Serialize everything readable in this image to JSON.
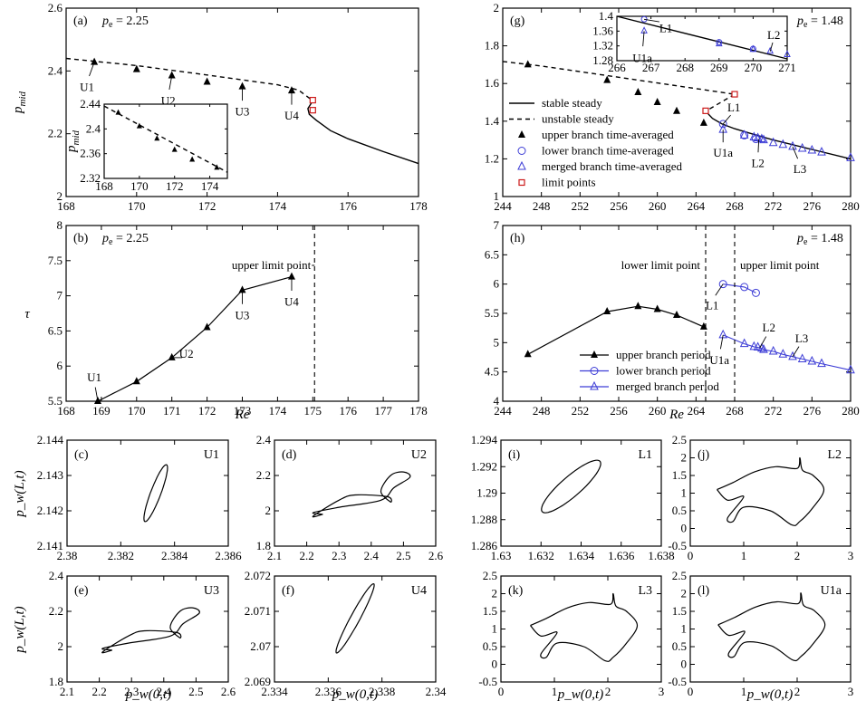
{
  "chart_data": [
    {
      "type": "line",
      "tag": "(a)",
      "pe": "2.25",
      "ylabel": "p_mid",
      "xlabel": "",
      "xlim": [
        168,
        178
      ],
      "ylim": [
        2.0,
        2.6
      ],
      "xticks": [
        "168",
        "170",
        "172",
        "174",
        "176",
        "178"
      ],
      "yticks": [
        "2",
        "2.2",
        "2.4",
        "2.6"
      ],
      "series": [
        {
          "style": "unstable-steady",
          "x": [
            168,
            170,
            172,
            174,
            174.6,
            175.0
          ],
          "y": [
            2.44,
            2.417,
            2.387,
            2.356,
            2.339,
            2.305
          ]
        },
        {
          "style": "stable-steady",
          "x": [
            175.0,
            174.86,
            174.9,
            175.1,
            175.5,
            176,
            177,
            178
          ],
          "y": [
            2.305,
            2.28,
            2.262,
            2.243,
            2.21,
            2.184,
            2.143,
            2.105
          ]
        },
        {
          "style": "upper-branch",
          "x": [
            168.8,
            170.0,
            171.0,
            172.0,
            173.0,
            174.4
          ],
          "y": [
            2.428,
            2.405,
            2.385,
            2.365,
            2.35,
            2.337
          ]
        },
        {
          "style": "limit-points",
          "x": [
            175.0,
            175.0
          ],
          "y": [
            2.307,
            2.275
          ]
        }
      ],
      "annotations": [
        {
          "text": "U1",
          "x": 168.8,
          "y": 2.428
        },
        {
          "text": "U2",
          "x": 171.0,
          "y": 2.385
        },
        {
          "text": "U3",
          "x": 173.0,
          "y": 2.35
        },
        {
          "text": "U4",
          "x": 174.4,
          "y": 2.337
        }
      ],
      "inset": {
        "xlim": [
          168,
          175
        ],
        "ylim": [
          2.32,
          2.44
        ],
        "xticks": [
          "168",
          "170",
          "172",
          "174"
        ],
        "yticks": [
          "2.32",
          "2.36",
          "2.4",
          "2.44"
        ],
        "ylabel": "p_mid",
        "series": [
          {
            "style": "unstable-steady",
            "x": [
              168,
              175
            ],
            "y": [
              2.437,
              2.33
            ]
          },
          {
            "style": "upper-branch",
            "x": [
              168.8,
              170,
              171,
              172,
              173,
              174.4
            ],
            "y": [
              2.426,
              2.404,
              2.384,
              2.366,
              2.35,
              2.337
            ]
          }
        ]
      }
    },
    {
      "type": "line",
      "tag": "(g)",
      "pe": "1.48",
      "xlabel": "",
      "ylabel": "",
      "xlim": [
        244,
        280
      ],
      "ylim": [
        1.0,
        2.0
      ],
      "xticks": [
        "244",
        "248",
        "252",
        "256",
        "260",
        "264",
        "268",
        "272",
        "276",
        "280"
      ],
      "yticks": [
        "1",
        "1.2",
        "1.4",
        "1.6",
        "1.8",
        "2"
      ],
      "series": [
        {
          "style": "unstable-steady",
          "x": [
            244,
            248,
            252,
            256,
            260,
            264,
            268
          ],
          "y": [
            1.717,
            1.693,
            1.663,
            1.633,
            1.603,
            1.573,
            1.543
          ]
        },
        {
          "style": "unstable-steady",
          "x": [
            268,
            265.0
          ],
          "y": [
            1.543,
            1.453
          ]
        },
        {
          "style": "stable-steady",
          "x": [
            265.0,
            265.7,
            266.7,
            268,
            270,
            272,
            276,
            280
          ],
          "y": [
            1.453,
            1.415,
            1.385,
            1.36,
            1.33,
            1.3,
            1.25,
            1.2
          ]
        },
        {
          "style": "upper-branch",
          "x": [
            246.6,
            254.8,
            258.0,
            260.0,
            262.0,
            264.8
          ],
          "y": [
            1.7,
            1.617,
            1.553,
            1.5,
            1.453,
            1.39
          ]
        },
        {
          "style": "lower-branch",
          "x": [
            266.8,
            269.0,
            270.2
          ],
          "y": [
            1.385,
            1.325,
            1.305
          ]
        },
        {
          "style": "merged-branch",
          "x": [
            266.8,
            269.0,
            270.0,
            270.4,
            270.8,
            271.0,
            272.0,
            273.0,
            274.0,
            275.0,
            276.0,
            277.0,
            280.0
          ],
          "y": [
            1.355,
            1.325,
            1.315,
            1.31,
            1.305,
            1.3,
            1.285,
            1.275,
            1.265,
            1.255,
            1.245,
            1.235,
            1.205
          ]
        },
        {
          "style": "limit-points",
          "x": [
            268.0,
            265.0
          ],
          "y": [
            1.543,
            1.455
          ]
        }
      ],
      "annotations": [
        {
          "text": "L1",
          "x": 266.8,
          "y": 1.385
        },
        {
          "text": "U1a",
          "x": 266.8,
          "y": 1.355
        },
        {
          "text": "L2",
          "x": 270.5,
          "y": 1.305
        },
        {
          "text": "L3",
          "x": 274.0,
          "y": 1.265
        }
      ],
      "legend": [
        "stable steady",
        "unstable steady",
        "upper branch time-averaged",
        "lower branch time-averaged",
        "merged branch time-averaged",
        "limit points"
      ],
      "inset": {
        "xlim": [
          266,
          271
        ],
        "ylim": [
          1.28,
          1.4
        ],
        "xticks": [
          "266",
          "267",
          "268",
          "269",
          "270",
          "271"
        ],
        "yticks": [
          "1.28",
          "1.32",
          "1.36",
          "1.4"
        ],
        "series": [
          {
            "style": "stable-steady",
            "x": [
              266,
              271
            ],
            "y": [
              1.4,
              1.285
            ]
          },
          {
            "style": "lower-branch",
            "x": [
              266.8,
              269.0,
              270.0
            ],
            "y": [
              1.392,
              1.33,
              1.312
            ]
          },
          {
            "style": "merged-branch",
            "x": [
              266.8,
              269.0,
              270.0,
              270.5,
              271.0
            ],
            "y": [
              1.36,
              1.325,
              1.31,
              1.305,
              1.296
            ]
          }
        ],
        "annotations": [
          {
            "text": "L1",
            "x": 266.8,
            "y": 1.392
          },
          {
            "text": "L2",
            "x": 270.5,
            "y": 1.305
          },
          {
            "text": "U1a",
            "x": 266.8,
            "y": 1.36
          }
        ]
      }
    },
    {
      "type": "line",
      "tag": "(b)",
      "pe": "2.25",
      "xlabel": "Re",
      "ylabel": "τ",
      "xlim": [
        168,
        178
      ],
      "ylim": [
        5.5,
        8.0
      ],
      "xticks": [
        "168",
        "169",
        "170",
        "171",
        "172",
        "173",
        "174",
        "175",
        "176",
        "177",
        "178"
      ],
      "yticks": [
        "5.5",
        "6",
        "6.5",
        "7",
        "7.5",
        "8"
      ],
      "series": [
        {
          "style": "upper-period",
          "x": [
            168.9,
            170.0,
            171.0,
            172.0,
            173.0,
            174.4
          ],
          "y": [
            5.5,
            5.78,
            6.12,
            6.55,
            7.08,
            7.27
          ]
        }
      ],
      "vlines": [
        {
          "x": 175.05,
          "label": "upper limit point"
        }
      ],
      "annotations": [
        {
          "text": "U1",
          "x": 168.9,
          "y": 5.5
        },
        {
          "text": "U2",
          "x": 171.0,
          "y": 6.12
        },
        {
          "text": "U3",
          "x": 173.0,
          "y": 7.08
        },
        {
          "text": "U4",
          "x": 174.4,
          "y": 7.27
        }
      ]
    },
    {
      "type": "line",
      "tag": "(h)",
      "pe": "1.48",
      "xlabel": "Re",
      "ylabel": "",
      "xlim": [
        244,
        280
      ],
      "ylim": [
        4.0,
        7.0
      ],
      "xticks": [
        "244",
        "248",
        "252",
        "256",
        "260",
        "264",
        "268",
        "272",
        "276",
        "280"
      ],
      "yticks": [
        "4",
        "4.5",
        "5",
        "5.5",
        "6",
        "6.5",
        "7"
      ],
      "series": [
        {
          "style": "upper-period",
          "x": [
            246.6,
            254.8,
            258.0,
            260.0,
            262.0,
            264.8
          ],
          "y": [
            4.8,
            5.53,
            5.62,
            5.57,
            5.47,
            5.27
          ]
        },
        {
          "style": "lower-period",
          "x": [
            266.8,
            269.0,
            270.2
          ],
          "y": [
            6.0,
            5.95,
            5.85
          ]
        },
        {
          "style": "merged-period",
          "x": [
            266.8,
            269.0,
            270.0,
            270.4,
            270.8,
            271.0,
            272.0,
            273.0,
            274.0,
            275.0,
            276.0,
            277.0,
            280.0
          ],
          "y": [
            5.13,
            4.98,
            4.93,
            4.92,
            4.9,
            4.88,
            4.85,
            4.8,
            4.76,
            4.72,
            4.68,
            4.64,
            4.53
          ]
        }
      ],
      "vlines": [
        {
          "x": 265.0,
          "label": "lower limit point"
        },
        {
          "x": 268.0,
          "label": "upper limit point"
        }
      ],
      "annotations": [
        {
          "text": "L1",
          "x": 266.8,
          "y": 6.0
        },
        {
          "text": "U1a",
          "x": 266.8,
          "y": 5.13
        },
        {
          "text": "L2",
          "x": 270.6,
          "y": 4.91
        },
        {
          "text": "L3",
          "x": 274.0,
          "y": 4.76
        }
      ],
      "legend": [
        "upper branch period",
        "lower branch period",
        "merged branch period"
      ]
    }
  ],
  "orbits": [
    {
      "tag": "(c)",
      "label": "U1",
      "xlim": [
        2.38,
        2.386
      ],
      "ylim": [
        2.141,
        2.144
      ],
      "xticks": [
        "2.38",
        "2.382",
        "2.384",
        "2.386"
      ],
      "yticks": [
        "2.141",
        "2.142",
        "2.143",
        "2.144"
      ]
    },
    {
      "tag": "(d)",
      "label": "U2",
      "xlim": [
        2.1,
        2.6
      ],
      "ylim": [
        1.8,
        2.4
      ],
      "xticks": [
        "2.1",
        "2.2",
        "2.3",
        "2.4",
        "2.5",
        "2.6"
      ],
      "yticks": [
        "1.8",
        "2",
        "2.2",
        "2.4"
      ]
    },
    {
      "tag": "(i)",
      "label": "L1",
      "xlim": [
        1.63,
        1.638
      ],
      "ylim": [
        1.286,
        1.294
      ],
      "xticks": [
        "1.63",
        "1.632",
        "1.634",
        "1.636",
        "1.638"
      ],
      "yticks": [
        "1.286",
        "1.288",
        "1.29",
        "1.292",
        "1.294"
      ]
    },
    {
      "tag": "(j)",
      "label": "L2",
      "xlim": [
        0,
        3
      ],
      "ylim": [
        -0.5,
        2.5
      ],
      "xticks": [
        "0",
        "1",
        "2",
        "3"
      ],
      "yticks": [
        "-0.5",
        "0",
        "0.5",
        "1",
        "1.5",
        "2",
        "2.5"
      ]
    },
    {
      "tag": "(e)",
      "label": "U3",
      "xlim": [
        2.1,
        2.6
      ],
      "ylim": [
        1.8,
        2.4
      ],
      "xticks": [
        "2.1",
        "2.2",
        "2.3",
        "2.4",
        "2.5",
        "2.6"
      ],
      "yticks": [
        "1.8",
        "2",
        "2.2",
        "2.4"
      ]
    },
    {
      "tag": "(f)",
      "label": "U4",
      "xlim": [
        2.334,
        2.34
      ],
      "ylim": [
        2.069,
        2.072
      ],
      "xticks": [
        "2.334",
        "2.336",
        "2.338",
        "2.34"
      ],
      "yticks": [
        "2.069",
        "2.07",
        "2.071",
        "2.072"
      ]
    },
    {
      "tag": "(k)",
      "label": "L3",
      "xlim": [
        0,
        3
      ],
      "ylim": [
        -0.5,
        2.5
      ],
      "xticks": [
        "0",
        "1",
        "2",
        "3"
      ],
      "yticks": [
        "-0.5",
        "0",
        "0.5",
        "1",
        "1.5",
        "2",
        "2.5"
      ]
    },
    {
      "tag": "(l)",
      "label": "U1a",
      "xlim": [
        0,
        3
      ],
      "ylim": [
        -0.5,
        2.5
      ],
      "xticks": [
        "0",
        "1",
        "2",
        "3"
      ],
      "yticks": [
        "-0.5",
        "0",
        "0.5",
        "1",
        "1.5",
        "2",
        "2.5"
      ]
    }
  ],
  "orbit_xlabel": "p_w(0,t)",
  "orbit_ylabel": "p_w(L,t)"
}
